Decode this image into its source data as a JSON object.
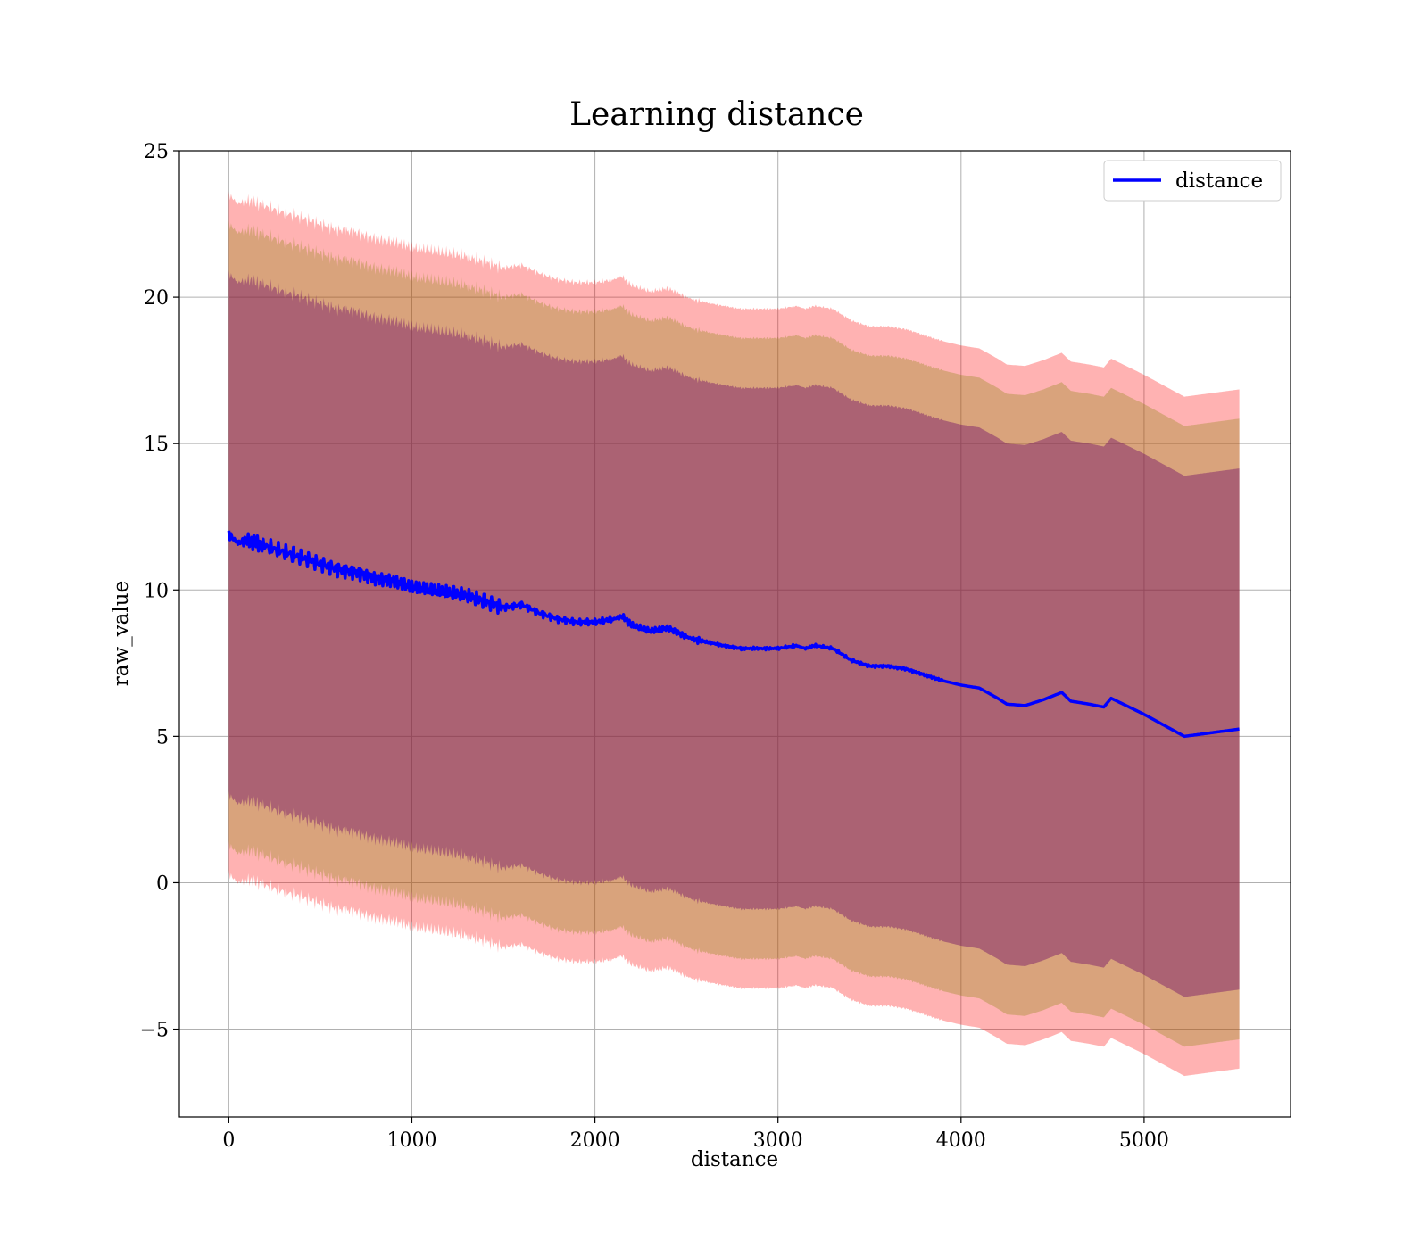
{
  "chart_data": {
    "type": "line",
    "title": "Learning distance",
    "xlabel": "distance",
    "ylabel": "raw_value",
    "xlim": [
      -270,
      5800
    ],
    "ylim": [
      -8,
      25
    ],
    "xticks": [
      0,
      1000,
      2000,
      3000,
      4000,
      5000
    ],
    "yticks": [
      -5,
      0,
      5,
      10,
      15,
      20,
      25
    ],
    "grid": true,
    "legend_position": "top-right",
    "legend": [
      {
        "label": "distance",
        "color": "#0000ff"
      }
    ],
    "series": [
      {
        "name": "distance",
        "color": "#0000ff",
        "x": [
          0,
          50,
          100,
          150,
          200,
          300,
          400,
          500,
          600,
          700,
          800,
          900,
          1000,
          1100,
          1200,
          1300,
          1400,
          1500,
          1600,
          1700,
          1800,
          1900,
          2000,
          2100,
          2150,
          2200,
          2300,
          2400,
          2500,
          2550,
          2700,
          2800,
          3000,
          3100,
          3150,
          3200,
          3300,
          3400,
          3500,
          3600,
          3700,
          3800,
          3900,
          4000,
          4100,
          4200,
          4250,
          4350,
          4450,
          4550,
          4600,
          4700,
          4780,
          4820,
          5000,
          5220,
          5520
        ],
        "y": [
          11.9,
          11.6,
          11.7,
          11.6,
          11.5,
          11.3,
          11.1,
          10.9,
          10.7,
          10.6,
          10.4,
          10.3,
          10.1,
          10.0,
          9.9,
          9.8,
          9.6,
          9.4,
          9.5,
          9.2,
          9.0,
          8.9,
          8.9,
          9.0,
          9.1,
          8.8,
          8.6,
          8.7,
          8.4,
          8.3,
          8.1,
          8.0,
          8.0,
          8.1,
          8.0,
          8.1,
          8.0,
          7.6,
          7.4,
          7.4,
          7.3,
          7.1,
          6.9,
          6.75,
          6.65,
          6.3,
          6.1,
          6.05,
          6.25,
          6.5,
          6.2,
          6.1,
          6.0,
          6.3,
          5.75,
          5.0,
          5.25
        ]
      }
    ],
    "bands": [
      {
        "name": "",
        "color": "#ff0000",
        "opacity": 0.3,
        "width": 11.6
      },
      {
        "name": "",
        "color": "#808000",
        "opacity": 0.3,
        "width": 10.6
      },
      {
        "name": "",
        "color": "#660066",
        "opacity": 0.4,
        "width": 8.9
      }
    ]
  }
}
